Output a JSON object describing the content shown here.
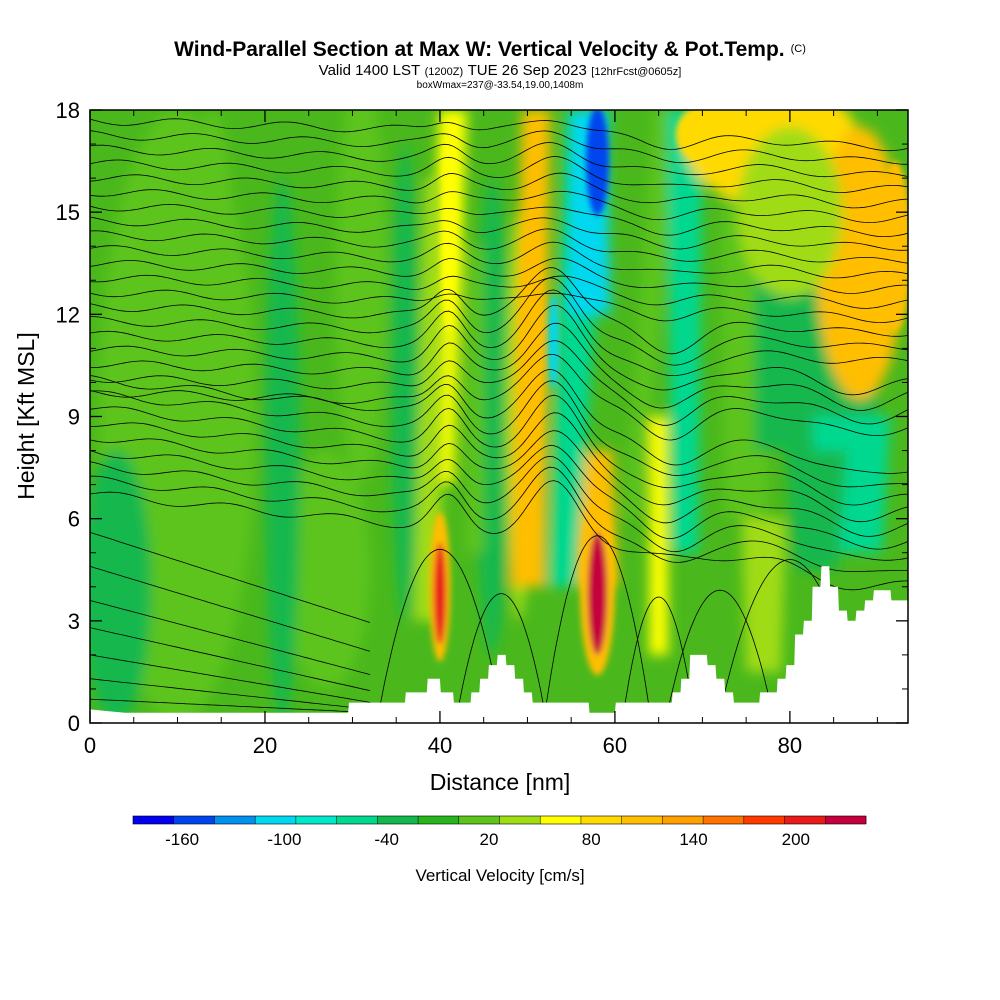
{
  "header": {
    "title": "Wind-Parallel Section at Max W: Vertical Velocity & Pot.Temp.",
    "title_mark": "(C)",
    "valid_prefix": "Valid 1400 LST",
    "valid_utc": "(1200Z)",
    "valid_date": "TUE 26 Sep 2023",
    "forecast": "[12hrFcst@0605z]",
    "box_info": "boxWmax=237@-33.54,19.00,1408m"
  },
  "colorbar": {
    "title": "Vertical Velocity [cm/s]",
    "labels": [
      "-160",
      "-100",
      "-40",
      "20",
      "80",
      "140",
      "200"
    ],
    "colors": [
      "#0000ee",
      "#0044ee",
      "#0090ee",
      "#00d8f0",
      "#00e8c8",
      "#00d890",
      "#12b84e",
      "#28b41c",
      "#5cc41c",
      "#a0dc14",
      "#ffff00",
      "#ffda00",
      "#ffbe00",
      "#ffa000",
      "#ff7400",
      "#ff3a00",
      "#e81a1a",
      "#c4003c"
    ]
  },
  "chart_data": {
    "type": "heatmap",
    "xlabel": "Distance [nm]",
    "ylabel": "Height [Kft MSL]",
    "xlim": [
      0,
      93.5
    ],
    "ylim": [
      0,
      18
    ],
    "x_ticks": [
      "0",
      "20",
      "40",
      "60",
      "80"
    ],
    "y_ticks": [
      "0",
      "3",
      "6",
      "9",
      "12",
      "15",
      "18"
    ],
    "fill_variable": "Vertical Velocity [cm/s]",
    "contour_variable": "Potential Temperature",
    "updrafts": [
      {
        "x": 40,
        "y": 4.0,
        "w": 200
      },
      {
        "x": 58,
        "y": 4.0,
        "w": 237
      },
      {
        "x": 41,
        "y": 14.5,
        "w": 70
      },
      {
        "x": 50,
        "y": 12.0,
        "w": 100
      },
      {
        "x": 65,
        "y": 4.0,
        "w": 60
      },
      {
        "x": 70,
        "y": 17.0,
        "w": 90
      },
      {
        "x": 92,
        "y": 14.0,
        "w": 100
      }
    ],
    "downdrafts": [
      {
        "x": 58,
        "y": 16.5,
        "w": -150
      },
      {
        "x": 53,
        "y": 11.0,
        "w": -100
      },
      {
        "x": 68,
        "y": 10.0,
        "w": -80
      },
      {
        "x": 85,
        "y": 11.0,
        "w": -60
      },
      {
        "x": 86,
        "y": 7.0,
        "w": -60
      }
    ],
    "terrain_kft": [
      [
        0,
        0.4
      ],
      [
        2,
        0.35
      ],
      [
        4,
        0.3
      ],
      [
        29.5,
        0.3
      ],
      [
        29.6,
        0.6
      ],
      [
        36,
        0.6
      ],
      [
        36.1,
        0.9
      ],
      [
        38.5,
        0.9
      ],
      [
        38.6,
        1.3
      ],
      [
        40,
        1.3
      ],
      [
        40.1,
        0.9
      ],
      [
        41.5,
        0.9
      ],
      [
        41.6,
        0.6
      ],
      [
        43.5,
        0.6
      ],
      [
        43.6,
        0.9
      ],
      [
        44.5,
        0.9
      ],
      [
        44.6,
        1.3
      ],
      [
        45.5,
        1.3
      ],
      [
        45.6,
        1.7
      ],
      [
        46.5,
        1.7
      ],
      [
        46.6,
        2.0
      ],
      [
        47.5,
        2.0
      ],
      [
        47.6,
        1.7
      ],
      [
        48.5,
        1.7
      ],
      [
        48.6,
        1.3
      ],
      [
        49.5,
        1.3
      ],
      [
        49.6,
        0.9
      ],
      [
        50.5,
        0.9
      ],
      [
        50.6,
        0.6
      ],
      [
        57,
        0.6
      ],
      [
        57.1,
        0.3
      ],
      [
        60,
        0.3
      ],
      [
        60.1,
        0.6
      ],
      [
        66.5,
        0.6
      ],
      [
        66.6,
        0.9
      ],
      [
        67.5,
        0.9
      ],
      [
        67.6,
        1.3
      ],
      [
        68.5,
        1.3
      ],
      [
        68.6,
        2.0
      ],
      [
        70.5,
        2.0
      ],
      [
        70.6,
        1.7
      ],
      [
        71.5,
        1.7
      ],
      [
        71.6,
        1.3
      ],
      [
        72.5,
        1.3
      ],
      [
        72.6,
        0.9
      ],
      [
        73.5,
        0.9
      ],
      [
        73.6,
        0.6
      ],
      [
        76.5,
        0.6
      ],
      [
        76.6,
        0.9
      ],
      [
        78.5,
        0.9
      ],
      [
        78.6,
        1.3
      ],
      [
        79.5,
        1.3
      ],
      [
        79.6,
        1.7
      ],
      [
        80.5,
        1.7
      ],
      [
        80.6,
        2.6
      ],
      [
        81.5,
        2.6
      ],
      [
        81.6,
        3.0
      ],
      [
        82.5,
        3.0
      ],
      [
        82.6,
        4.0
      ],
      [
        83.5,
        4.0
      ],
      [
        83.6,
        4.6
      ],
      [
        84.5,
        4.6
      ],
      [
        84.6,
        4.0
      ],
      [
        85.5,
        4.0
      ],
      [
        85.6,
        3.3
      ],
      [
        86.5,
        3.3
      ],
      [
        86.6,
        3.0
      ],
      [
        87.5,
        3.0
      ],
      [
        87.6,
        3.3
      ],
      [
        88.5,
        3.3
      ],
      [
        88.6,
        3.6
      ],
      [
        89.5,
        3.6
      ],
      [
        89.6,
        3.9
      ],
      [
        91.5,
        3.9
      ],
      [
        91.6,
        3.6
      ],
      [
        93.5,
        3.6
      ]
    ]
  }
}
